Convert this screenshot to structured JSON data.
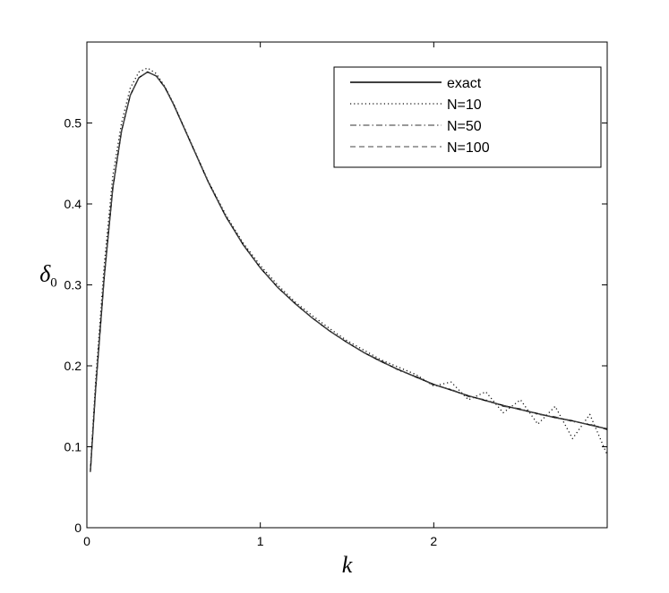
{
  "chart_data": {
    "type": "line",
    "xlabel": "k",
    "ylabel": "δ",
    "ylabel_subscript": "0",
    "xlim": [
      0,
      3
    ],
    "ylim": [
      0,
      0.6
    ],
    "xticks": [
      {
        "value": 0,
        "label": "0"
      },
      {
        "value": 1,
        "label": "1"
      },
      {
        "value": 2,
        "label": "2"
      }
    ],
    "yticks": [
      {
        "value": 0,
        "label": "0"
      },
      {
        "value": 0.1,
        "label": "0.1"
      },
      {
        "value": 0.2,
        "label": "0.2"
      },
      {
        "value": 0.3,
        "label": "0.3"
      },
      {
        "value": 0.4,
        "label": "0.4"
      },
      {
        "value": 0.5,
        "label": "0.5"
      }
    ],
    "grid": false,
    "legend_position": "top-right",
    "series": [
      {
        "name": "exact",
        "style": "solid",
        "x": [
          0.02,
          0.05,
          0.1,
          0.15,
          0.2,
          0.25,
          0.3,
          0.35,
          0.4,
          0.45,
          0.5,
          0.6,
          0.7,
          0.8,
          0.9,
          1.0,
          1.1,
          1.2,
          1.3,
          1.4,
          1.5,
          1.6,
          1.7,
          1.8,
          1.9,
          2.0,
          2.1,
          2.2,
          2.3,
          2.4,
          2.5,
          2.6,
          2.7,
          2.8,
          2.9,
          3.0
        ],
        "y": [
          0.069,
          0.17,
          0.31,
          0.42,
          0.49,
          0.534,
          0.556,
          0.563,
          0.558,
          0.544,
          0.523,
          0.475,
          0.427,
          0.385,
          0.35,
          0.321,
          0.297,
          0.277,
          0.259,
          0.243,
          0.229,
          0.216,
          0.205,
          0.195,
          0.186,
          0.177,
          0.17,
          0.163,
          0.157,
          0.151,
          0.146,
          0.141,
          0.136,
          0.132,
          0.127,
          0.122
        ]
      },
      {
        "name": "N=10",
        "style": "dotted",
        "x": [
          0.02,
          0.05,
          0.1,
          0.15,
          0.2,
          0.25,
          0.3,
          0.35,
          0.4,
          0.45,
          0.5,
          0.6,
          0.7,
          0.8,
          0.9,
          1.0,
          1.1,
          1.2,
          1.3,
          1.4,
          1.5,
          1.6,
          1.7,
          1.8,
          1.9,
          2.0,
          2.1,
          2.2,
          2.3,
          2.4,
          2.5,
          2.6,
          2.7,
          2.8,
          2.9,
          3.0
        ],
        "y": [
          0.072,
          0.18,
          0.325,
          0.435,
          0.5,
          0.543,
          0.563,
          0.568,
          0.561,
          0.545,
          0.524,
          0.476,
          0.428,
          0.387,
          0.352,
          0.324,
          0.3,
          0.279,
          0.262,
          0.246,
          0.231,
          0.219,
          0.207,
          0.198,
          0.189,
          0.175,
          0.18,
          0.158,
          0.168,
          0.142,
          0.158,
          0.128,
          0.15,
          0.11,
          0.14,
          0.09
        ]
      },
      {
        "name": "N=50",
        "style": "dashdot",
        "x": [
          0.02,
          0.05,
          0.1,
          0.15,
          0.2,
          0.25,
          0.3,
          0.35,
          0.4,
          0.45,
          0.5,
          0.6,
          0.7,
          0.8,
          0.9,
          1.0,
          1.1,
          1.2,
          1.3,
          1.4,
          1.5,
          1.6,
          1.7,
          1.8,
          1.9,
          2.0,
          2.1,
          2.2,
          2.3,
          2.4,
          2.5,
          2.6,
          2.7,
          2.8,
          2.9,
          3.0
        ],
        "y": [
          0.069,
          0.17,
          0.31,
          0.42,
          0.49,
          0.534,
          0.556,
          0.563,
          0.558,
          0.544,
          0.523,
          0.475,
          0.427,
          0.385,
          0.35,
          0.321,
          0.297,
          0.277,
          0.259,
          0.243,
          0.229,
          0.216,
          0.206,
          0.194,
          0.187,
          0.176,
          0.171,
          0.162,
          0.158,
          0.15,
          0.147,
          0.14,
          0.137,
          0.131,
          0.128,
          0.121
        ]
      },
      {
        "name": "N=100",
        "style": "dashed",
        "x": [
          0.02,
          0.05,
          0.1,
          0.15,
          0.2,
          0.25,
          0.3,
          0.35,
          0.4,
          0.45,
          0.5,
          0.6,
          0.7,
          0.8,
          0.9,
          1.0,
          1.1,
          1.2,
          1.3,
          1.4,
          1.5,
          1.6,
          1.7,
          1.8,
          1.9,
          2.0,
          2.1,
          2.2,
          2.3,
          2.4,
          2.5,
          2.6,
          2.7,
          2.8,
          2.9,
          3.0
        ],
        "y": [
          0.069,
          0.17,
          0.31,
          0.42,
          0.49,
          0.534,
          0.556,
          0.563,
          0.558,
          0.544,
          0.523,
          0.475,
          0.427,
          0.385,
          0.35,
          0.321,
          0.297,
          0.277,
          0.259,
          0.243,
          0.229,
          0.216,
          0.205,
          0.195,
          0.186,
          0.177,
          0.17,
          0.163,
          0.157,
          0.151,
          0.146,
          0.141,
          0.136,
          0.132,
          0.127,
          0.122
        ]
      }
    ]
  }
}
